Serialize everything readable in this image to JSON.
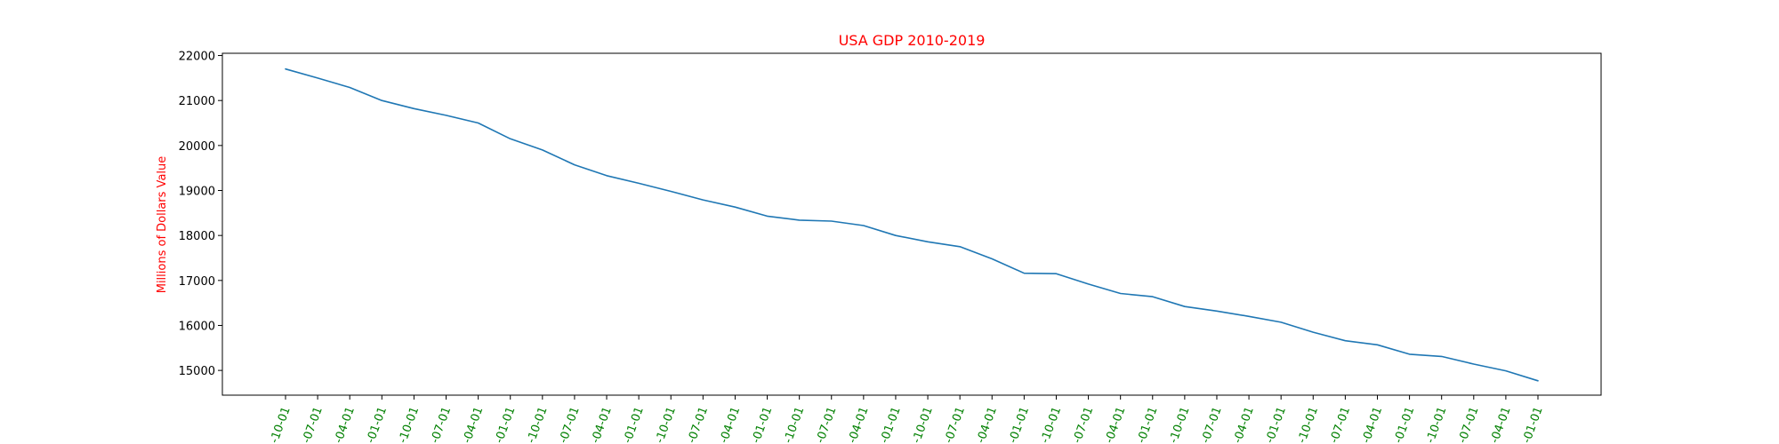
{
  "chart_data": {
    "type": "line",
    "title": "USA GDP 2010-2019",
    "xlabel": "",
    "ylabel": "Millions of Dollars Value",
    "x": [
      "-10-01",
      "-07-01",
      "-04-01",
      "-01-01",
      "-10-01",
      "-07-01",
      "-04-01",
      "-01-01",
      "-10-01",
      "-07-01",
      "-04-01",
      "-01-01",
      "-10-01",
      "-07-01",
      "-04-01",
      "-01-01",
      "-10-01",
      "-07-01",
      "-04-01",
      "-01-01",
      "-10-01",
      "-07-01",
      "-04-01",
      "-01-01",
      "-10-01",
      "-07-01",
      "-04-01",
      "-01-01",
      "-10-01",
      "-07-01",
      "-04-01",
      "-01-01",
      "-10-01",
      "-07-01",
      "-04-01",
      "-01-01",
      "-10-01",
      "-07-01",
      "-04-01",
      "-01-01"
    ],
    "series": [
      {
        "values": [
          21700,
          21500,
          21290,
          21000,
          20820,
          20670,
          20500,
          20150,
          19900,
          19570,
          19330,
          19160,
          18980,
          18790,
          18630,
          18430,
          18340,
          18320,
          18220,
          18000,
          17860,
          17750,
          17480,
          17160,
          17150,
          16920,
          16710,
          16640,
          16420,
          16320,
          16200,
          16070,
          15850,
          15660,
          15570,
          15360,
          15310,
          15140,
          14990,
          14770
        ]
      }
    ],
    "ylim": [
      14450,
      22050
    ],
    "yticks": [
      15000,
      16000,
      17000,
      18000,
      19000,
      20000,
      21000,
      22000
    ],
    "grid": false,
    "colors": {
      "line": "#1f77b4",
      "title": "#ff0000",
      "ylabel": "#ff0000",
      "xticks": "#008000"
    }
  }
}
